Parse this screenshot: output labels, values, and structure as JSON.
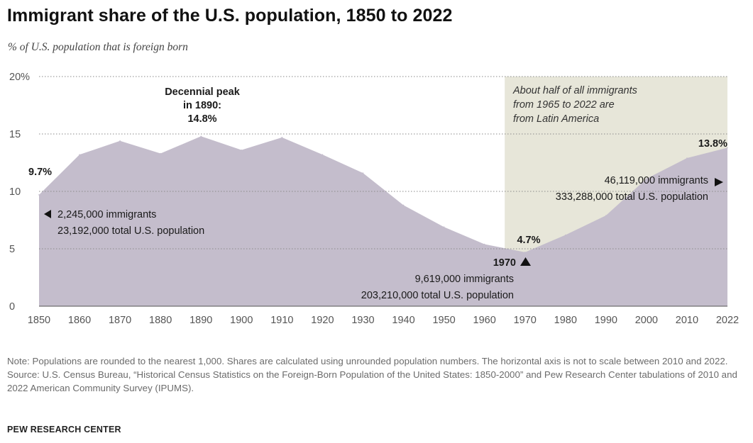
{
  "title": "Immigrant share of the U.S. population, 1850 to 2022",
  "subtitle": "% of U.S. population that is foreign born",
  "colors": {
    "area": "#c4bdcc",
    "shade": "#e7e6d9",
    "grid": "#8a8a8a",
    "text": "#1a1a1a",
    "axis": "#555555"
  },
  "chart_data": {
    "type": "area",
    "x": [
      1850,
      1860,
      1870,
      1880,
      1890,
      1900,
      1910,
      1920,
      1930,
      1940,
      1950,
      1960,
      1970,
      1980,
      1990,
      2000,
      2010,
      2022
    ],
    "values": [
      9.7,
      13.2,
      14.4,
      13.3,
      14.8,
      13.6,
      14.7,
      13.2,
      11.6,
      8.8,
      6.9,
      5.4,
      4.7,
      6.2,
      7.9,
      11.1,
      12.9,
      13.8
    ],
    "ylim": [
      0,
      20
    ],
    "yticks": [
      {
        "value": 0,
        "label": "0"
      },
      {
        "value": 5,
        "label": "5"
      },
      {
        "value": 10,
        "label": "10"
      },
      {
        "value": 15,
        "label": "15"
      },
      {
        "value": 20,
        "label": "20%"
      }
    ],
    "xtick_labels": [
      "1850",
      "1860",
      "1870",
      "1880",
      "1890",
      "1900",
      "1910",
      "1920",
      "1930",
      "1940",
      "1950",
      "1960",
      "1970",
      "1980",
      "1990",
      "2000",
      "2010",
      "2022"
    ],
    "grid": true,
    "shaded_region": {
      "from": 1965,
      "to": 2022,
      "label": [
        "About half of all immigrants",
        "from 1965 to 2022 are",
        "from Latin America"
      ]
    },
    "annotations": {
      "start_value": "9.7%",
      "start_detail": [
        "2,245,000 immigrants",
        "23,192,000 total U.S. population"
      ],
      "peak_label": [
        "Decennial peak",
        "in 1890:",
        "14.8%"
      ],
      "low_value": "4.7%",
      "low_year": "1970",
      "low_detail": [
        "9,619,000 immigrants",
        "203,210,000 total U.S. population"
      ],
      "end_value": "13.8%",
      "end_detail": [
        "46,119,000 immigrants",
        "333,288,000 total U.S. population"
      ]
    }
  },
  "notes": {
    "note": "Note: Populations are rounded to the nearest 1,000. Shares are calculated using unrounded population numbers. The horizontal axis is not to scale between 2010 and 2022.",
    "source": "Source: U.S. Census Bureau, “Historical Census Statistics on the Foreign-Born Population of the United States: 1850-2000” and Pew Research Center tabulations of 2010 and 2022 American Community Survey (IPUMS)."
  },
  "brand": "PEW RESEARCH CENTER"
}
